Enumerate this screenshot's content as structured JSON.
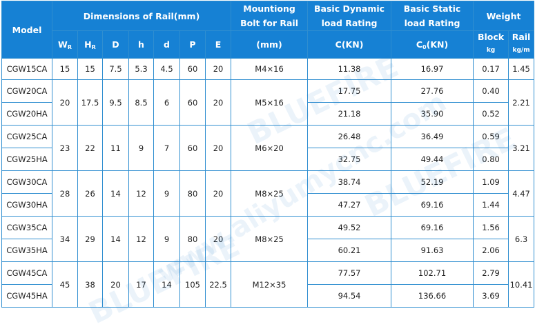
{
  "headers": {
    "model": "Model",
    "dimensions": "Dimensions of Rail(mm)",
    "bolt": [
      "Mountiong",
      "Bolt for Rail"
    ],
    "dynamic": [
      "Basic Dynamic",
      "load Rating"
    ],
    "static": [
      "Basic Static",
      "load Rating"
    ],
    "weight": "Weight",
    "dim_cols": [
      {
        "main": "W",
        "sub": "R"
      },
      {
        "main": "H",
        "sub": "R"
      },
      {
        "main": "D",
        "sub": ""
      },
      {
        "main": "h",
        "sub": ""
      },
      {
        "main": "d",
        "sub": ""
      },
      {
        "main": "P",
        "sub": ""
      },
      {
        "main": "E",
        "sub": ""
      }
    ],
    "bolt_unit": "(mm)",
    "dynamic_unit": "C(KN)",
    "static_unit": {
      "main": "C",
      "sub": "0",
      "rest": "(KN)"
    },
    "block": {
      "label": "Block",
      "unit": "kg"
    },
    "rail": {
      "label": "Rail",
      "unit": "kg/m"
    }
  },
  "groups": [
    {
      "dims": [
        "15",
        "15",
        "7.5",
        "5.3",
        "4.5",
        "60",
        "20"
      ],
      "bolt": "M4×16",
      "rail": "1.45",
      "models": [
        {
          "name": "CGW15CA",
          "dynamic": "11.38",
          "static": "16.97",
          "block": "0.17"
        }
      ]
    },
    {
      "dims": [
        "20",
        "17.5",
        "9.5",
        "8.5",
        "6",
        "60",
        "20"
      ],
      "bolt": "M5×16",
      "rail": "2.21",
      "models": [
        {
          "name": "CGW20CA",
          "dynamic": "17.75",
          "static": "27.76",
          "block": "0.40"
        },
        {
          "name": "CGW20HA",
          "dynamic": "21.18",
          "static": "35.90",
          "block": "0.52"
        }
      ]
    },
    {
      "dims": [
        "23",
        "22",
        "11",
        "9",
        "7",
        "60",
        "20"
      ],
      "bolt": "M6×20",
      "rail": "3.21",
      "models": [
        {
          "name": "CGW25CA",
          "dynamic": "26.48",
          "static": "36.49",
          "block": "0.59"
        },
        {
          "name": "CGW25HA",
          "dynamic": "32.75",
          "static": "49.44",
          "block": "0.80"
        }
      ]
    },
    {
      "dims": [
        "28",
        "26",
        "14",
        "12",
        "9",
        "80",
        "20"
      ],
      "bolt": "M8×25",
      "rail": "4.47",
      "models": [
        {
          "name": "CGW30CA",
          "dynamic": "38.74",
          "static": "52.19",
          "block": "1.09"
        },
        {
          "name": "CGW30HA",
          "dynamic": "47.27",
          "static": "69.16",
          "block": "1.44"
        }
      ]
    },
    {
      "dims": [
        "34",
        "29",
        "14",
        "12",
        "9",
        "80",
        "20"
      ],
      "bolt": "M8×25",
      "rail": "6.3",
      "models": [
        {
          "name": "CGW35CA",
          "dynamic": "49.52",
          "static": "69.16",
          "block": "1.56"
        },
        {
          "name": "CGW35HA",
          "dynamic": "60.21",
          "static": "91.63",
          "block": "2.06"
        }
      ]
    },
    {
      "dims": [
        "45",
        "38",
        "20",
        "17",
        "14",
        "105",
        "22.5"
      ],
      "bolt": "M12×35",
      "rail": "10.41",
      "models": [
        {
          "name": "CGW45CA",
          "dynamic": "77.57",
          "static": "102.71",
          "block": "2.79"
        },
        {
          "name": "CGW45HA",
          "dynamic": "94.54",
          "static": "136.66",
          "block": "3.69"
        }
      ]
    }
  ],
  "watermarks": [
    "BLUEFIRE",
    "www.aliyumycnc.com",
    "BLUEFIRE",
    "BLUEFIRE"
  ],
  "colors": {
    "header_bg": "#1681d4",
    "border": "#2f8ed0",
    "header_text": "#ffffff",
    "body_text": "#222222"
  }
}
